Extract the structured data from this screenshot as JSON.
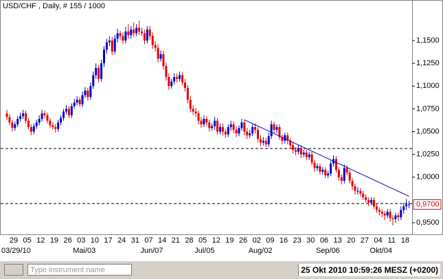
{
  "chart_data": {
    "type": "candlestick",
    "title": "USD/CHF , Daily, # 155 / 1000",
    "up_color": "#0000cc",
    "down_color": "#e00000",
    "categories": [
      "29",
      null,
      null,
      null,
      null,
      "05",
      null,
      null,
      null,
      null,
      "12",
      null,
      null,
      null,
      null,
      "19",
      null,
      null,
      null,
      null,
      "26",
      null,
      null,
      null,
      null,
      "03",
      null,
      null,
      null,
      null,
      "10",
      null,
      null,
      null,
      null,
      "17",
      null,
      null,
      null,
      null,
      "24",
      null,
      null,
      null,
      null,
      "31",
      null,
      null,
      null,
      null,
      "07",
      null,
      null,
      null,
      null,
      "14",
      null,
      null,
      null,
      null,
      "21",
      null,
      null,
      null,
      null,
      "28",
      null,
      null,
      null,
      null,
      "05",
      null,
      null,
      null,
      null,
      "12",
      null,
      null,
      null,
      null,
      "19",
      null,
      null,
      null,
      null,
      "26",
      null,
      null,
      null,
      null,
      "02",
      null,
      null,
      null,
      null,
      "09",
      null,
      null,
      null,
      null,
      "16",
      null,
      null,
      null,
      null,
      "23",
      null,
      null,
      null,
      null,
      "30",
      null,
      null,
      null,
      null,
      "06",
      null,
      null,
      null,
      null,
      "13",
      null,
      null,
      null,
      null,
      "20",
      null,
      null,
      null,
      null,
      "27",
      null,
      null,
      null,
      null,
      "04",
      null,
      null,
      null,
      null,
      "11",
      null,
      null,
      null,
      null,
      "18",
      null,
      null,
      null,
      null
    ],
    "period_labels": [
      "03/29/10",
      null,
      null,
      null,
      null,
      null,
      null,
      null,
      null,
      null,
      null,
      null,
      null,
      null,
      null,
      null,
      null,
      null,
      null,
      null,
      null,
      null,
      null,
      null,
      null,
      "Mai/03",
      null,
      null,
      null,
      null,
      null,
      null,
      null,
      null,
      null,
      null,
      null,
      null,
      null,
      null,
      null,
      null,
      null,
      null,
      null,
      null,
      null,
      null,
      null,
      null,
      "Jun/07",
      null,
      null,
      null,
      null,
      null,
      null,
      null,
      null,
      null,
      null,
      null,
      null,
      null,
      null,
      null,
      null,
      null,
      null,
      null,
      "Jul/05",
      null,
      null,
      null,
      null,
      null,
      null,
      null,
      null,
      null,
      null,
      null,
      null,
      null,
      null,
      null,
      null,
      null,
      null,
      null,
      "Aug/02",
      null,
      null,
      null,
      null,
      null,
      null,
      null,
      null,
      null,
      null,
      null,
      null,
      null,
      null,
      null,
      null,
      null,
      null,
      null,
      null,
      null,
      null,
      null,
      null,
      "Sep/06",
      null,
      null,
      null,
      null,
      null,
      null,
      null,
      null,
      null,
      null,
      null,
      null,
      null,
      null,
      null,
      null,
      null,
      null,
      null,
      "Okt/04",
      null,
      null,
      null,
      null,
      null,
      null,
      null,
      null,
      null,
      null,
      null,
      null,
      null,
      null
    ],
    "open": [
      1.07,
      1.066,
      1.06,
      1.054,
      1.058,
      1.064,
      1.067,
      1.07,
      1.062,
      1.055,
      1.05,
      1.056,
      1.06,
      1.064,
      1.07,
      1.068,
      1.062,
      1.057,
      1.055,
      1.053,
      1.06,
      1.065,
      1.072,
      1.075,
      1.068,
      1.078,
      1.082,
      1.085,
      1.08,
      1.09,
      1.095,
      1.088,
      1.1,
      1.112,
      1.12,
      1.108,
      1.125,
      1.14,
      1.148,
      1.15,
      1.138,
      1.152,
      1.158,
      1.155,
      1.15,
      1.16,
      1.156,
      1.162,
      1.158,
      1.164,
      1.16,
      1.158,
      1.15,
      1.162,
      1.155,
      1.145,
      1.142,
      1.13,
      1.135,
      1.122,
      1.11,
      1.1,
      1.105,
      1.11,
      1.108,
      1.112,
      1.104,
      1.098,
      1.085,
      1.075,
      1.072,
      1.07,
      1.062,
      1.058,
      1.064,
      1.06,
      1.054,
      1.056,
      1.062,
      1.05,
      1.055,
      1.05,
      1.047,
      1.055,
      1.058,
      1.052,
      1.048,
      1.054,
      1.06,
      1.05,
      1.046,
      1.048,
      1.055,
      1.052,
      1.042,
      1.038,
      1.04,
      1.036,
      1.045,
      1.058,
      1.052,
      1.055,
      1.044,
      1.04,
      1.046,
      1.04,
      1.035,
      1.03,
      1.028,
      1.032,
      1.025,
      1.027,
      1.022,
      1.025,
      1.016,
      1.01,
      1.012,
      1.006,
      1.008,
      1.002,
      1.004,
      1.015,
      1.02,
      1.008,
      1.0,
      0.996,
      1.01,
      1.005,
      0.996,
      0.99,
      0.985,
      0.985,
      0.982,
      0.978,
      0.975,
      0.972,
      0.975,
      0.968,
      0.964,
      0.962,
      0.96,
      0.958,
      0.962,
      0.955,
      0.954,
      0.958,
      0.956,
      0.964,
      0.968,
      0.97
    ],
    "high": [
      1.074,
      1.069,
      1.063,
      1.061,
      1.067,
      1.071,
      1.074,
      1.073,
      1.065,
      1.058,
      1.059,
      1.063,
      1.068,
      1.074,
      1.073,
      1.071,
      1.065,
      1.06,
      1.058,
      1.063,
      1.068,
      1.075,
      1.079,
      1.078,
      1.081,
      1.086,
      1.089,
      1.088,
      1.094,
      1.099,
      1.098,
      1.104,
      1.116,
      1.125,
      1.123,
      1.129,
      1.144,
      1.152,
      1.155,
      1.154,
      1.156,
      1.163,
      1.161,
      1.159,
      1.165,
      1.168,
      1.166,
      1.17,
      1.168,
      1.172,
      1.164,
      1.162,
      1.166,
      1.166,
      1.159,
      1.149,
      1.146,
      1.139,
      1.139,
      1.126,
      1.114,
      1.108,
      1.114,
      1.114,
      1.116,
      1.115,
      1.108,
      1.101,
      1.089,
      1.079,
      1.076,
      1.073,
      1.066,
      1.068,
      1.067,
      1.063,
      1.059,
      1.066,
      1.065,
      1.059,
      1.059,
      1.053,
      1.058,
      1.062,
      1.061,
      1.056,
      1.057,
      1.064,
      1.063,
      1.054,
      1.052,
      1.058,
      1.059,
      1.055,
      1.046,
      1.044,
      1.043,
      1.049,
      1.062,
      1.061,
      1.058,
      1.058,
      1.047,
      1.049,
      1.049,
      1.043,
      1.038,
      1.033,
      1.035,
      1.035,
      1.03,
      1.03,
      1.028,
      1.028,
      1.019,
      1.015,
      1.015,
      1.011,
      1.011,
      1.007,
      1.018,
      1.024,
      1.023,
      1.011,
      1.003,
      1.014,
      1.013,
      1.008,
      0.999,
      0.993,
      0.989,
      0.988,
      0.985,
      0.981,
      0.978,
      0.978,
      0.978,
      0.971,
      0.967,
      0.965,
      0.963,
      0.965,
      0.965,
      0.958,
      0.961,
      0.961,
      0.968,
      0.972,
      0.976,
      0.974
    ],
    "low": [
      1.063,
      1.057,
      1.05,
      1.051,
      1.055,
      1.061,
      1.064,
      1.059,
      1.052,
      1.046,
      1.047,
      1.053,
      1.057,
      1.061,
      1.065,
      1.059,
      1.054,
      1.052,
      1.049,
      1.05,
      1.057,
      1.062,
      1.069,
      1.065,
      1.065,
      1.075,
      1.079,
      1.077,
      1.077,
      1.087,
      1.084,
      1.085,
      1.097,
      1.108,
      1.104,
      1.105,
      1.121,
      1.136,
      1.144,
      1.134,
      1.135,
      1.148,
      1.151,
      1.146,
      1.147,
      1.152,
      1.152,
      1.154,
      1.155,
      1.156,
      1.155,
      1.146,
      1.147,
      1.151,
      1.141,
      1.138,
      1.126,
      1.127,
      1.118,
      1.106,
      1.096,
      1.097,
      1.102,
      1.104,
      1.105,
      1.101,
      1.094,
      1.081,
      1.071,
      1.068,
      1.066,
      1.058,
      1.054,
      1.055,
      1.056,
      1.05,
      1.051,
      1.052,
      1.047,
      1.047,
      1.046,
      1.043,
      1.044,
      1.051,
      1.048,
      1.044,
      1.045,
      1.051,
      1.046,
      1.042,
      1.043,
      1.045,
      1.048,
      1.038,
      1.034,
      1.035,
      1.033,
      1.033,
      1.042,
      1.048,
      1.048,
      1.041,
      1.036,
      1.037,
      1.036,
      1.031,
      1.026,
      1.024,
      1.025,
      1.021,
      1.022,
      1.019,
      1.019,
      1.013,
      1.006,
      1.007,
      1.003,
      1.003,
      0.999,
      0.999,
      1.001,
      1.012,
      1.005,
      0.996,
      0.992,
      0.993,
      1.002,
      0.993,
      0.986,
      0.981,
      0.981,
      0.979,
      0.975,
      0.972,
      0.968,
      0.969,
      0.965,
      0.961,
      0.958,
      0.956,
      0.953,
      0.955,
      0.951,
      0.947,
      0.95,
      0.952,
      0.953,
      0.96,
      0.964,
      0.966
    ],
    "close": [
      1.066,
      1.06,
      1.054,
      1.058,
      1.064,
      1.067,
      1.07,
      1.062,
      1.055,
      1.05,
      1.056,
      1.06,
      1.064,
      1.07,
      1.068,
      1.062,
      1.057,
      1.055,
      1.053,
      1.06,
      1.065,
      1.072,
      1.075,
      1.068,
      1.078,
      1.082,
      1.085,
      1.08,
      1.09,
      1.095,
      1.088,
      1.1,
      1.112,
      1.12,
      1.108,
      1.125,
      1.14,
      1.148,
      1.15,
      1.138,
      1.152,
      1.158,
      1.155,
      1.15,
      1.16,
      1.156,
      1.162,
      1.158,
      1.164,
      1.16,
      1.158,
      1.15,
      1.162,
      1.155,
      1.145,
      1.142,
      1.13,
      1.135,
      1.122,
      1.11,
      1.1,
      1.105,
      1.11,
      1.108,
      1.112,
      1.104,
      1.098,
      1.085,
      1.075,
      1.072,
      1.07,
      1.062,
      1.058,
      1.064,
      1.06,
      1.054,
      1.056,
      1.062,
      1.05,
      1.055,
      1.05,
      1.047,
      1.055,
      1.058,
      1.052,
      1.048,
      1.054,
      1.06,
      1.05,
      1.046,
      1.048,
      1.055,
      1.052,
      1.042,
      1.038,
      1.04,
      1.036,
      1.045,
      1.058,
      1.052,
      1.055,
      1.044,
      1.04,
      1.046,
      1.04,
      1.035,
      1.03,
      1.028,
      1.032,
      1.025,
      1.027,
      1.022,
      1.025,
      1.016,
      1.01,
      1.012,
      1.006,
      1.008,
      1.002,
      1.004,
      1.015,
      1.02,
      1.008,
      1.0,
      0.996,
      1.01,
      1.005,
      0.996,
      0.99,
      0.985,
      0.985,
      0.982,
      0.978,
      0.975,
      0.972,
      0.975,
      0.968,
      0.964,
      0.962,
      0.96,
      0.958,
      0.962,
      0.955,
      0.954,
      0.958,
      0.956,
      0.964,
      0.968,
      0.97,
      0.97
    ],
    "ylim": [
      0.938,
      1.19
    ],
    "yticks": [
      {
        "value": 0.95,
        "label": "0,9500"
      },
      {
        "value": 1.0,
        "label": "1,0000"
      },
      {
        "value": 1.025,
        "label": "1,0250"
      },
      {
        "value": 1.05,
        "label": "1,0500"
      },
      {
        "value": 1.075,
        "label": "1,0750"
      },
      {
        "value": 1.1,
        "label": "1,1000"
      },
      {
        "value": 1.125,
        "label": "1,1250"
      },
      {
        "value": 1.15,
        "label": "1,1500"
      }
    ],
    "hlines": [
      1.0315,
      0.971
    ],
    "trendline": {
      "x": [
        88,
        149
      ],
      "y": [
        1.063,
        0.979
      ]
    },
    "last_price": {
      "value": 0.97,
      "label": "0,9700"
    },
    "line_color": "#0000c0"
  },
  "toolbar": {
    "search_placeholder": "Type instrument name",
    "status": "25 Okt 2010 10:59:26  MESZ (+0200)"
  }
}
